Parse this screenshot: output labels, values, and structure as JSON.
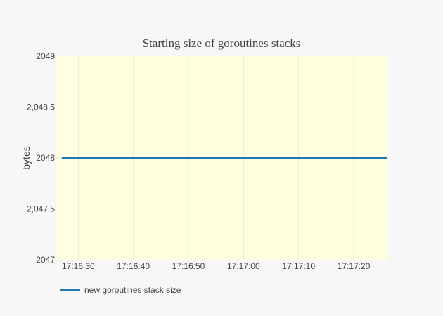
{
  "chart_data": {
    "type": "line",
    "title": "Starting size of goroutines stacks",
    "xlabel": "",
    "ylabel": "bytes",
    "ylim": [
      2047,
      2049
    ],
    "yticks": [
      {
        "value": 2047,
        "label": "2047"
      },
      {
        "value": 2047.5,
        "label": "2,047.5"
      },
      {
        "value": 2048,
        "label": "2048"
      },
      {
        "value": 2048.5,
        "label": "2,048.5"
      },
      {
        "value": 2049,
        "label": "2049"
      }
    ],
    "xlim": [
      "17:16:26",
      "17:17:26"
    ],
    "xticks": [
      "17:16:30",
      "17:16:40",
      "17:16:50",
      "17:17:00",
      "17:17:10",
      "17:17:20"
    ],
    "series": [
      {
        "name": "new goroutines stack size",
        "color": "#1f77b4",
        "x": [
          "17:16:27",
          "17:17:26"
        ],
        "values": [
          2048,
          2048
        ]
      }
    ],
    "grid": true,
    "legend_position": "bottom-left",
    "plot_background": "#ffffe0",
    "paper_background": "#f7f7f7"
  }
}
